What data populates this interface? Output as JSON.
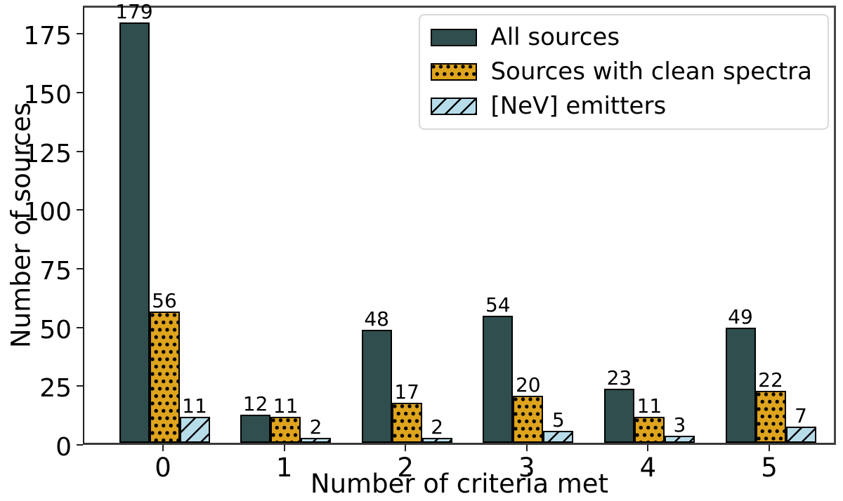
{
  "chart_data": {
    "type": "bar",
    "title": "",
    "xlabel": "Number of criteria met",
    "ylabel": "Number of sources",
    "categories": [
      "0",
      "1",
      "2",
      "3",
      "4",
      "5"
    ],
    "series": [
      {
        "name": "All sources",
        "color": "#2F4E4D",
        "pattern": "solid",
        "values": [
          179,
          12,
          48,
          54,
          23,
          49
        ]
      },
      {
        "name": "Sources with clean spectra",
        "color": "#DFA41D",
        "pattern": "dots",
        "values": [
          56,
          11,
          17,
          20,
          11,
          22
        ]
      },
      {
        "name": "[NeV] emitters",
        "color": "#B7DCE9",
        "pattern": "diagonal",
        "values": [
          11,
          2,
          2,
          5,
          3,
          7
        ]
      }
    ],
    "yticks": [
      0,
      25,
      50,
      75,
      100,
      125,
      150,
      175
    ],
    "ylim": [
      0,
      187
    ],
    "bar_value_labels": true,
    "grid": false,
    "legend_position": "upper right",
    "axis_color": "#000000",
    "edge_color": "#000000"
  }
}
